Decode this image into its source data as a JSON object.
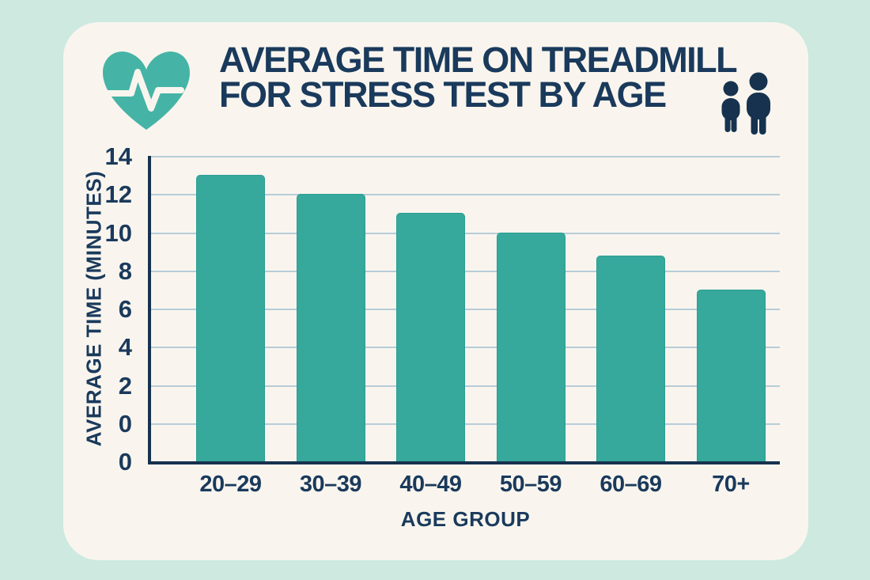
{
  "header": {
    "title_line1": "AVERAGE TIME ON TREADMILL",
    "title_line2": "FOR STRESS TEST BY AGE",
    "heart_icon": "heart-with-ekg-pulse",
    "people_icon": "two-person-pictogram"
  },
  "chart_data": {
    "type": "bar",
    "title": "Average Time on Treadmill for Stress Test by Age",
    "categories": [
      "20–29",
      "30–39",
      "40–49",
      "50–59",
      "60–69",
      "70+"
    ],
    "values": [
      13,
      12,
      11,
      10,
      8.8,
      7
    ],
    "xlabel": "AGE GROUP",
    "ylabel": "AVERAGE TIME (MINUTES)",
    "ylim": [
      0,
      14
    ],
    "yticks": [
      14,
      12,
      10,
      8,
      6,
      4,
      2,
      0
    ],
    "baseline_extra_tick": "0",
    "grid": true,
    "legend": "none",
    "bar_color": "#37a89c"
  },
  "colors": {
    "page_background": "#cde9e0",
    "card_background": "#f9f5ee",
    "bar_teal": "#37a89c",
    "heart_teal": "#45b4a6",
    "navy_text": "#1a3a5c",
    "axis_navy": "#16324e",
    "gridline": "#b7cdd9"
  }
}
